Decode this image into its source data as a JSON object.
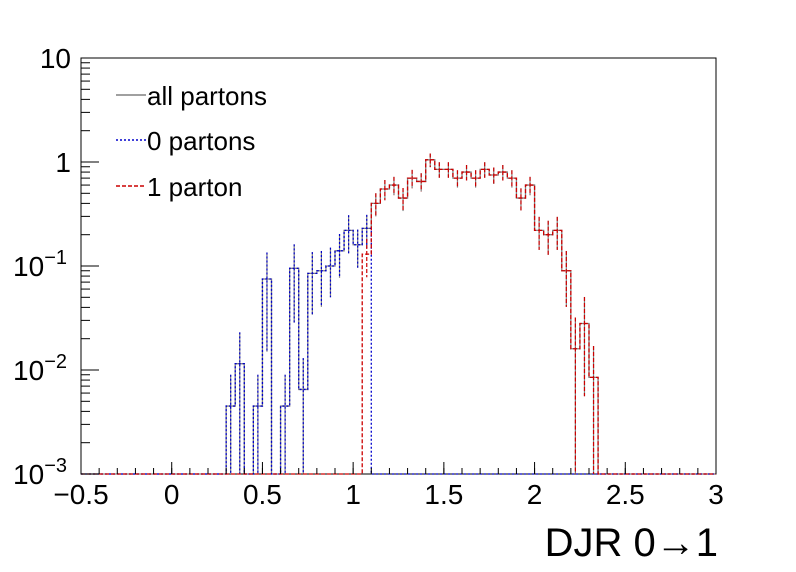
{
  "chart_data": {
    "type": "step-histogram",
    "xlabel": "DJR 0→1",
    "ylabel": "",
    "xlim": [
      -0.5,
      3.0
    ],
    "ylim": [
      0.001,
      10
    ],
    "yscale": "log",
    "grid": false,
    "legend_position": "top-left",
    "x_ticks": [
      {
        "value": -0.5,
        "label": "−0.5"
      },
      {
        "value": 0,
        "label": "0"
      },
      {
        "value": 0.5,
        "label": "0.5"
      },
      {
        "value": 1,
        "label": "1"
      },
      {
        "value": 1.5,
        "label": "1.5"
      },
      {
        "value": 2,
        "label": "2"
      },
      {
        "value": 2.5,
        "label": "2.5"
      },
      {
        "value": 3,
        "label": "3"
      }
    ],
    "y_ticks": [
      {
        "value": 0.001,
        "base": "10",
        "exp": "−3"
      },
      {
        "value": 0.01,
        "base": "10",
        "exp": "−2"
      },
      {
        "value": 0.1,
        "base": "10",
        "exp": "−1"
      },
      {
        "value": 1,
        "base": "1",
        "exp": ""
      },
      {
        "value": 10,
        "base": "10",
        "exp": ""
      }
    ],
    "bin_edges_start": -0.5,
    "bin_width": 0.05,
    "series": [
      {
        "name": "all partons",
        "color": "#808080",
        "dash": "solid",
        "values": [
          0,
          0,
          0,
          0,
          0,
          0,
          0,
          0,
          0,
          0,
          0,
          0,
          0,
          0,
          0,
          0,
          0.0045,
          0.0115,
          0,
          0.0045,
          0.075,
          0,
          0.0045,
          0.095,
          0.0065,
          0.085,
          0.09,
          0.1,
          0.14,
          0.22,
          0.16,
          0.23,
          0.4,
          0.55,
          0.6,
          0.45,
          0.7,
          0.65,
          1.05,
          0.85,
          0.85,
          0.7,
          0.8,
          0.7,
          0.85,
          0.75,
          0.8,
          0.7,
          0.45,
          0.6,
          0.22,
          0.2,
          0.22,
          0.09,
          0.016,
          0.028,
          0.0085,
          0,
          0,
          0,
          0,
          0,
          0,
          0,
          0,
          0,
          0,
          0,
          0,
          0
        ],
        "errors_rel": [
          0,
          0,
          0,
          0,
          0,
          0,
          0,
          0,
          0,
          0,
          0,
          0,
          0,
          0,
          0,
          0,
          1.0,
          1.0,
          0,
          1.0,
          0.8,
          0,
          1.0,
          0.7,
          1.0,
          0.6,
          0.55,
          0.5,
          0.45,
          0.4,
          0.4,
          0.35,
          0.25,
          0.22,
          0.2,
          0.25,
          0.2,
          0.2,
          0.15,
          0.17,
          0.17,
          0.19,
          0.17,
          0.19,
          0.17,
          0.18,
          0.17,
          0.19,
          0.24,
          0.2,
          0.35,
          0.36,
          0.35,
          0.55,
          1.0,
          0.8,
          1.0,
          0,
          0,
          0,
          0,
          0,
          0,
          0,
          0,
          0,
          0,
          0,
          0,
          0
        ]
      },
      {
        "name": "0 partons",
        "color": "#0000cc",
        "dash": "dotted",
        "values": [
          0,
          0,
          0,
          0,
          0,
          0,
          0,
          0,
          0,
          0,
          0,
          0,
          0,
          0,
          0,
          0,
          0.0045,
          0.0115,
          0,
          0.0045,
          0.075,
          0,
          0.0045,
          0.095,
          0.0065,
          0.085,
          0.09,
          0.1,
          0.14,
          0.22,
          0.16,
          0.23,
          0,
          0,
          0,
          0,
          0,
          0,
          0,
          0,
          0,
          0,
          0,
          0,
          0,
          0,
          0,
          0,
          0,
          0,
          0,
          0,
          0,
          0,
          0,
          0,
          0,
          0,
          0,
          0,
          0,
          0,
          0,
          0,
          0,
          0,
          0,
          0,
          0,
          0
        ],
        "errors_rel": [
          0,
          0,
          0,
          0,
          0,
          0,
          0,
          0,
          0,
          0,
          0,
          0,
          0,
          0,
          0,
          0,
          1.0,
          1.0,
          0,
          1.0,
          0.8,
          0,
          1.0,
          0.7,
          1.0,
          0.6,
          0.55,
          0.5,
          0.45,
          0.4,
          0.4,
          0.35,
          0,
          0,
          0,
          0,
          0,
          0,
          0,
          0,
          0,
          0,
          0,
          0,
          0,
          0,
          0,
          0,
          0,
          0,
          0,
          0,
          0,
          0,
          0,
          0,
          0,
          0,
          0,
          0,
          0,
          0,
          0,
          0,
          0,
          0,
          0,
          0,
          0,
          0
        ]
      },
      {
        "name": "1 parton",
        "color": "#cc0000",
        "dash": "dashed",
        "values": [
          0,
          0,
          0,
          0,
          0,
          0,
          0,
          0,
          0,
          0,
          0,
          0,
          0,
          0,
          0,
          0,
          0,
          0,
          0,
          0,
          0,
          0,
          0,
          0,
          0,
          0,
          0,
          0,
          0,
          0,
          0,
          0.13,
          0.4,
          0.55,
          0.6,
          0.45,
          0.7,
          0.65,
          1.05,
          0.85,
          0.85,
          0.7,
          0.8,
          0.7,
          0.85,
          0.75,
          0.8,
          0.7,
          0.45,
          0.6,
          0.22,
          0.2,
          0.22,
          0.09,
          0.016,
          0.028,
          0.0085,
          0,
          0,
          0,
          0,
          0,
          0,
          0,
          0,
          0,
          0,
          0,
          0,
          0
        ],
        "errors_rel": [
          0,
          0,
          0,
          0,
          0,
          0,
          0,
          0,
          0,
          0,
          0,
          0,
          0,
          0,
          0,
          0,
          0,
          0,
          0,
          0,
          0,
          0,
          0,
          0,
          0,
          0,
          0,
          0,
          0,
          0,
          0,
          0.4,
          0.25,
          0.22,
          0.2,
          0.25,
          0.2,
          0.2,
          0.15,
          0.17,
          0.17,
          0.19,
          0.17,
          0.19,
          0.17,
          0.18,
          0.17,
          0.19,
          0.24,
          0.2,
          0.35,
          0.36,
          0.35,
          0.55,
          1.0,
          0.8,
          1.0,
          0,
          0,
          0,
          0,
          0,
          0,
          0,
          0,
          0,
          0,
          0,
          0,
          0
        ]
      }
    ]
  }
}
